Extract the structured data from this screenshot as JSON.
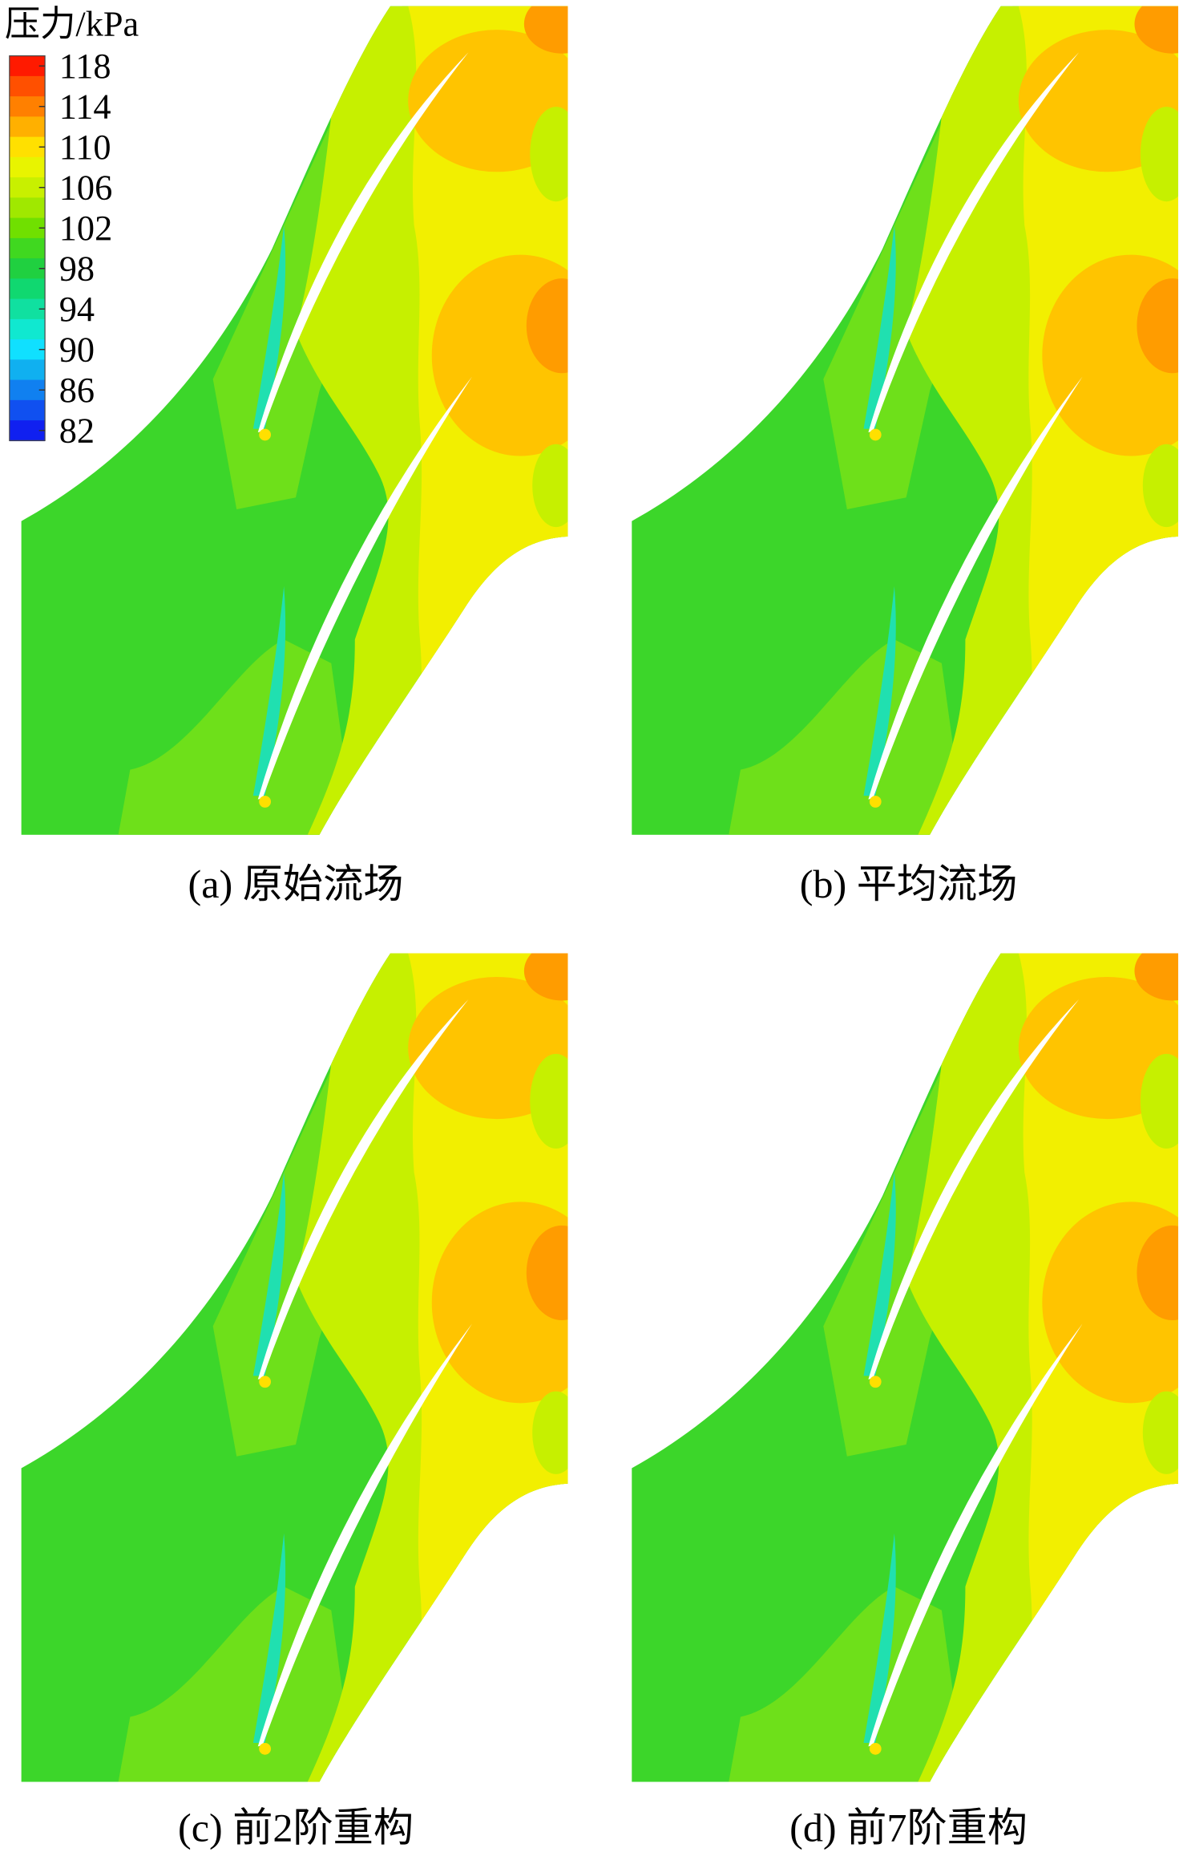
{
  "colorbar": {
    "title": "压力/kPa",
    "lim": [
      81,
      119
    ],
    "ticks": [
      118,
      114,
      110,
      106,
      102,
      98,
      94,
      90,
      86,
      82
    ],
    "colors": [
      "#ff1a00",
      "#ff5000",
      "#ff8000",
      "#ffb000",
      "#ffe000",
      "#e8f400",
      "#c8f000",
      "#a0e800",
      "#70e000",
      "#40d820",
      "#20d040",
      "#10d870",
      "#10e0a0",
      "#10e8d0",
      "#10e0ff",
      "#10b0f0",
      "#1080f0",
      "#1050f0",
      "#1020f0"
    ]
  },
  "panels": [
    {
      "caption": "(a) 原始流场"
    },
    {
      "caption": "(b) 平均流场"
    },
    {
      "caption": "(c) 前2阶重构"
    },
    {
      "caption": "(d) 前7阶重构"
    }
  ]
}
